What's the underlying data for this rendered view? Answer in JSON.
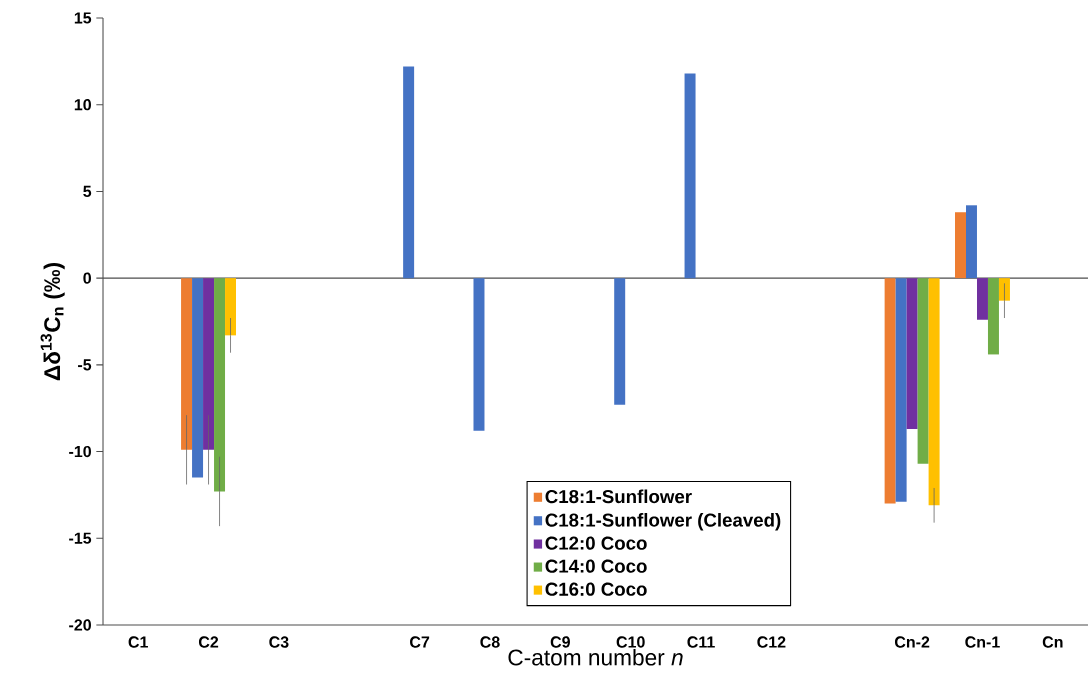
{
  "chart_data": {
    "type": "bar",
    "xlabel": "C-atom number *n*",
    "ylabel": "Δδ$^{13}$C$_{n}$ (‰)",
    "categories": [
      "C1",
      "C2",
      "C3",
      null,
      "C7",
      "C8",
      "C9",
      "C10",
      "C11",
      "C12",
      null,
      "Cn-2",
      "Cn-1",
      "Cn"
    ],
    "series": [
      {
        "name": "C18:1-Sunflower",
        "color": "#ed7d31",
        "values": [
          null,
          -9.9,
          null,
          null,
          null,
          null,
          null,
          null,
          null,
          null,
          null,
          -13.0,
          3.8,
          null
        ],
        "errors": [
          null,
          2.0,
          null,
          null,
          null,
          null,
          null,
          null,
          null,
          null,
          null,
          null,
          null,
          null
        ]
      },
      {
        "name": "C18:1-Sunflower (Cleaved)",
        "color": "#4472c4",
        "values": [
          null,
          -11.5,
          null,
          null,
          12.2,
          -8.8,
          null,
          -7.3,
          11.8,
          null,
          null,
          -12.9,
          4.2,
          null
        ]
      },
      {
        "name": "C12:0 Coco",
        "color": "#7030a0",
        "values": [
          null,
          -9.9,
          null,
          null,
          null,
          null,
          null,
          null,
          null,
          null,
          null,
          -8.7,
          -2.4,
          null
        ],
        "errors": [
          null,
          2.0,
          null,
          null,
          null,
          null,
          null,
          null,
          null,
          null,
          null,
          null,
          null,
          null
        ]
      },
      {
        "name": "C14:0 Coco",
        "color": "#70ad47",
        "values": [
          null,
          -12.3,
          null,
          null,
          null,
          null,
          null,
          null,
          null,
          null,
          null,
          -10.7,
          -4.4,
          null
        ],
        "errors": [
          null,
          2.0,
          null,
          null,
          null,
          null,
          null,
          null,
          null,
          null,
          null,
          null,
          null,
          null
        ]
      },
      {
        "name": "C16:0 Coco",
        "color": "#ffc000",
        "values": [
          null,
          -3.3,
          null,
          null,
          null,
          null,
          null,
          null,
          null,
          null,
          null,
          -13.1,
          -1.3,
          null
        ],
        "errors": [
          null,
          1.0,
          null,
          null,
          null,
          null,
          null,
          null,
          null,
          null,
          null,
          1.0,
          1.0,
          null
        ]
      }
    ],
    "ylim": [
      -20,
      15
    ],
    "yticks": [
      -20,
      -15,
      -10,
      -5,
      0,
      5,
      10,
      15
    ],
    "legend": "bottom"
  }
}
